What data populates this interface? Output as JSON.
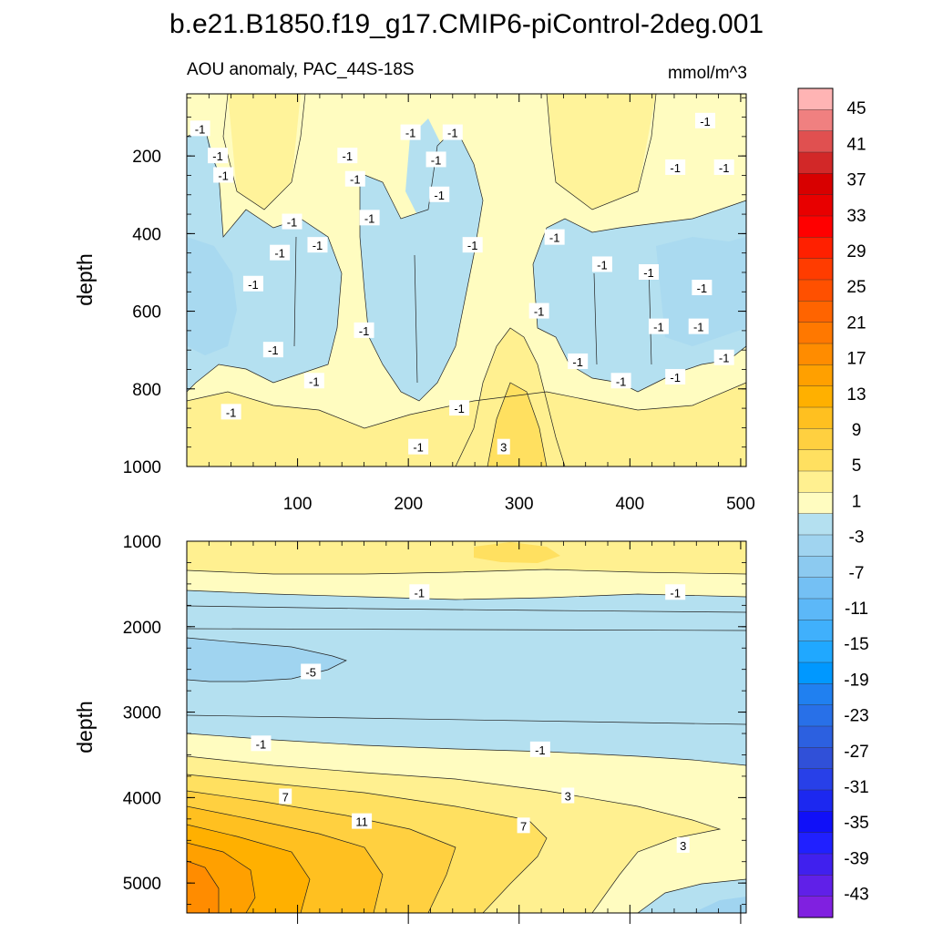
{
  "chart_data": {
    "type": "contour",
    "title": "b.e21.B1850.f19_g17.CMIP6-piControl-2deg.001",
    "subtitle_left": "AOU anomaly, PAC_44S-18S",
    "subtitle_right": "mmol/m^3",
    "xlim": [
      0,
      505
    ],
    "x_ticks": [
      100,
      200,
      300,
      400,
      500
    ],
    "colorbar": {
      "ticks": [
        45,
        41,
        37,
        33,
        29,
        25,
        21,
        17,
        13,
        9,
        5,
        1,
        -3,
        -7,
        -11,
        -15,
        -19,
        -23,
        -27,
        -31,
        -35,
        -39,
        -43
      ],
      "colors": [
        "#ffb4b4",
        "#f08080",
        "#e05050",
        "#d22828",
        "#d80000",
        "#e80000",
        "#ff0000",
        "#ff2000",
        "#ff3c00",
        "#ff5000",
        "#ff6400",
        "#ff7800",
        "#ff8c00",
        "#ffa000",
        "#ffb000",
        "#ffc020",
        "#ffd040",
        "#ffe060",
        "#fff090",
        "#fffcc0",
        "#b4e0f0",
        "#a0d4f0",
        "#8ccaf0",
        "#74c0f4",
        "#5cb8f8",
        "#40b0fc",
        "#20a8ff",
        "#0098ff",
        "#2080f0",
        "#2870e8",
        "#2c60e0",
        "#3050d8",
        "#2840e8",
        "#1c28f0",
        "#1010f8",
        "#2020ff",
        "#4020ee",
        "#6020e8",
        "#8020e0"
      ]
    },
    "panels": [
      {
        "name": "upper-ocean",
        "ylabel": "depth",
        "ylim": [
          1000,
          40
        ],
        "y_ticks": [
          200,
          400,
          600,
          800,
          1000
        ],
        "contour_labels": [
          {
            "text": "-1",
            "x": 12,
            "y": 130
          },
          {
            "text": "-1",
            "x": 28,
            "y": 200
          },
          {
            "text": "-1",
            "x": 33,
            "y": 250
          },
          {
            "text": "-1",
            "x": 60,
            "y": 530
          },
          {
            "text": "-1",
            "x": 78,
            "y": 700
          },
          {
            "text": "-1",
            "x": 95,
            "y": 370
          },
          {
            "text": "-1",
            "x": 84,
            "y": 450
          },
          {
            "text": "-1",
            "x": 118,
            "y": 430
          },
          {
            "text": "-1",
            "x": 115,
            "y": 780
          },
          {
            "text": "-1",
            "x": 145,
            "y": 200
          },
          {
            "text": "-1",
            "x": 152,
            "y": 260
          },
          {
            "text": "-1",
            "x": 165,
            "y": 360
          },
          {
            "text": "-1",
            "x": 160,
            "y": 650
          },
          {
            "text": "-1",
            "x": 40,
            "y": 860
          },
          {
            "text": "-1",
            "x": 202,
            "y": 140
          },
          {
            "text": "-1",
            "x": 225,
            "y": 210
          },
          {
            "text": "-1",
            "x": 228,
            "y": 300
          },
          {
            "text": "-1",
            "x": 240,
            "y": 140
          },
          {
            "text": "-1",
            "x": 258,
            "y": 430
          },
          {
            "text": "-1",
            "x": 246,
            "y": 850
          },
          {
            "text": "-1",
            "x": 209,
            "y": 950
          },
          {
            "text": "3",
            "x": 286,
            "y": 950
          },
          {
            "text": "-1",
            "x": 318,
            "y": 600
          },
          {
            "text": "-1",
            "x": 332,
            "y": 410
          },
          {
            "text": "-1",
            "x": 353,
            "y": 730
          },
          {
            "text": "-1",
            "x": 375,
            "y": 480
          },
          {
            "text": "-1",
            "x": 392,
            "y": 780
          },
          {
            "text": "-1",
            "x": 417,
            "y": 500
          },
          {
            "text": "-1",
            "x": 426,
            "y": 640
          },
          {
            "text": "-1",
            "x": 441,
            "y": 230
          },
          {
            "text": "-1",
            "x": 441,
            "y": 770
          },
          {
            "text": "-1",
            "x": 465,
            "y": 540
          },
          {
            "text": "-1",
            "x": 462,
            "y": 640
          },
          {
            "text": "-1",
            "x": 468,
            "y": 110
          },
          {
            "text": "-1",
            "x": 485,
            "y": 230
          },
          {
            "text": "-1",
            "x": 485,
            "y": 720
          }
        ]
      },
      {
        "name": "deep-ocean",
        "ylabel": "depth",
        "ylim": [
          1000,
          5350
        ],
        "y_ticks": [
          1000,
          2000,
          3000,
          4000,
          5000
        ],
        "contour_labels": [
          {
            "text": "-1",
            "x": 210,
            "y": 1600
          },
          {
            "text": "-1",
            "x": 441,
            "y": 1600
          },
          {
            "text": "-5",
            "x": 112,
            "y": 2530
          },
          {
            "text": "-1",
            "x": 67,
            "y": 3370
          },
          {
            "text": "-1",
            "x": 319,
            "y": 3440
          },
          {
            "text": "7",
            "x": 89,
            "y": 3990
          },
          {
            "text": "3",
            "x": 344,
            "y": 3980
          },
          {
            "text": "11",
            "x": 158,
            "y": 4280
          },
          {
            "text": "7",
            "x": 304,
            "y": 4330
          },
          {
            "text": "3",
            "x": 448,
            "y": 4560
          }
        ]
      }
    ]
  }
}
